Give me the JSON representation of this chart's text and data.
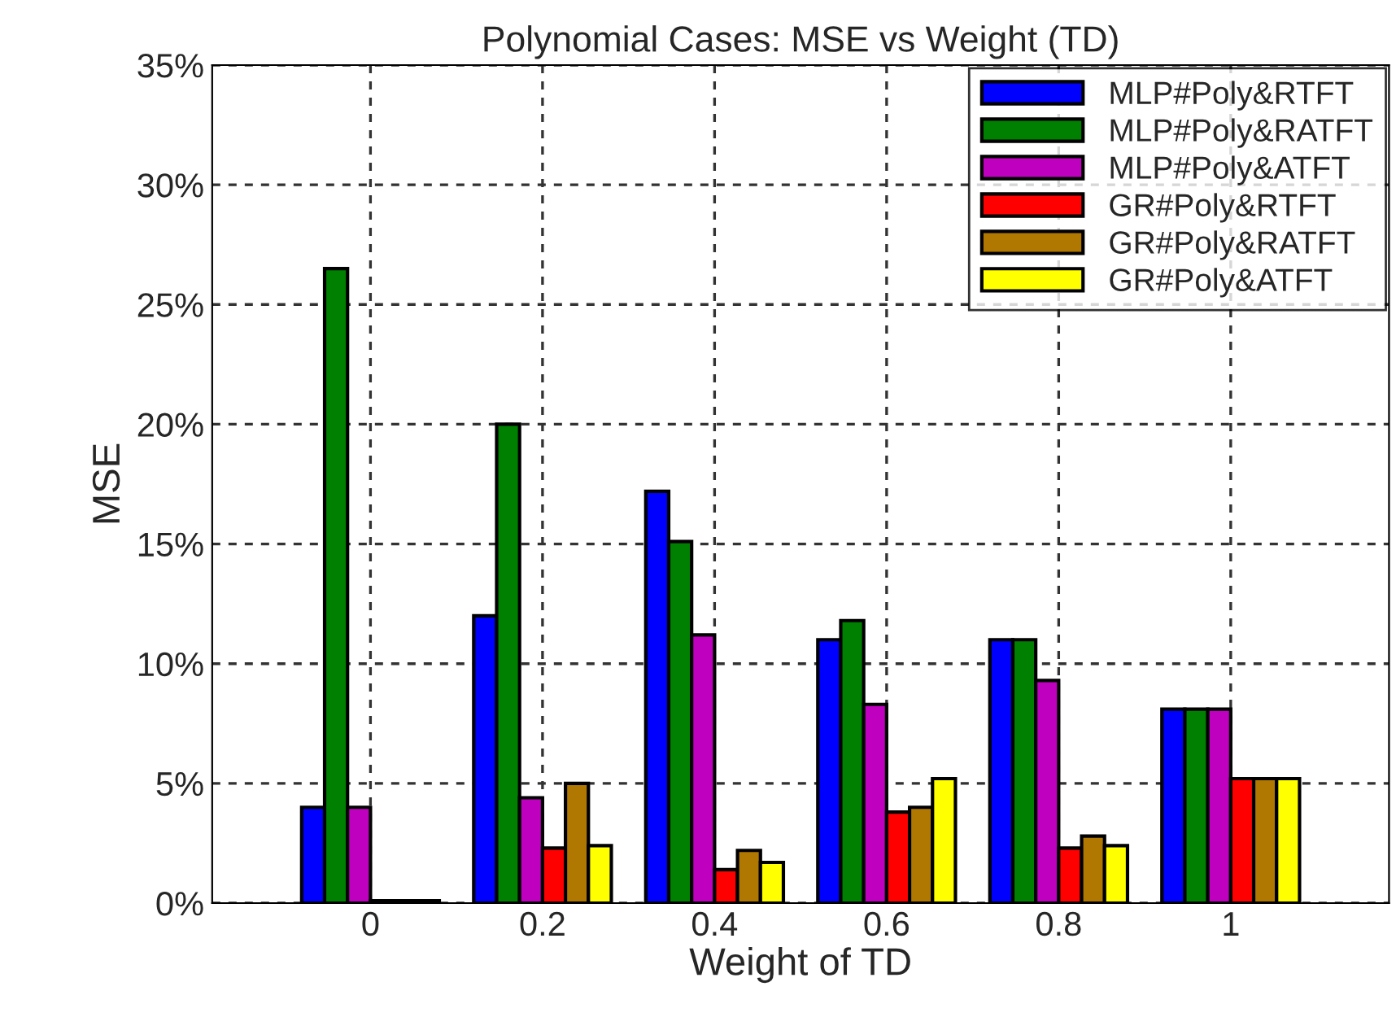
{
  "chart_data": {
    "type": "bar",
    "title": "Polynomial Cases: MSE vs Weight (TD)",
    "xlabel": "Weight of TD",
    "ylabel": "MSE",
    "categories": [
      "0",
      "0.2",
      "0.4",
      "0.6",
      "0.8",
      "1"
    ],
    "series": [
      {
        "name": "MLP#Poly&RTFT",
        "color": "#0000ff",
        "values": [
          4.0,
          12.0,
          17.2,
          11.0,
          11.0,
          8.1
        ]
      },
      {
        "name": "MLP#Poly&RATFT",
        "color": "#008000",
        "values": [
          26.5,
          20.0,
          15.1,
          11.8,
          11.0,
          8.1
        ]
      },
      {
        "name": "MLP#Poly&ATFT",
        "color": "#bf00bf",
        "values": [
          4.0,
          4.4,
          11.2,
          8.3,
          9.3,
          8.1
        ]
      },
      {
        "name": "GR#Poly&RTFT",
        "color": "#ff0000",
        "values": [
          0.1,
          2.3,
          1.4,
          3.8,
          2.3,
          5.2
        ]
      },
      {
        "name": "GR#Poly&RATFT",
        "color": "#b07800",
        "values": [
          0.1,
          5.0,
          2.2,
          4.0,
          2.8,
          5.2
        ]
      },
      {
        "name": "GR#Poly&ATFT",
        "color": "#ffff00",
        "values": [
          0.1,
          2.4,
          1.7,
          5.2,
          2.4,
          5.2
        ]
      }
    ],
    "ylim": [
      0,
      35
    ],
    "yticks": [
      {
        "value": 0,
        "label": "0%"
      },
      {
        "value": 5,
        "label": "5%"
      },
      {
        "value": 10,
        "label": "10%"
      },
      {
        "value": 15,
        "label": "15%"
      },
      {
        "value": 20,
        "label": "20%"
      },
      {
        "value": 25,
        "label": "25%"
      },
      {
        "value": 30,
        "label": "30%"
      },
      {
        "value": 35,
        "label": "35%"
      }
    ],
    "grid": true,
    "legend": "top right"
  }
}
